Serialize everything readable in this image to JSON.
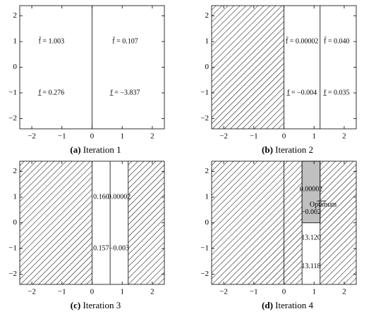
{
  "chart_data": [
    {
      "type": "region",
      "caption_label": "(a)",
      "caption": "Iteration 1",
      "xlim": [
        -2.4,
        2.4
      ],
      "ylim": [
        -2.4,
        2.4
      ],
      "xticks": [
        {
          "value": -2,
          "label": "−2"
        },
        {
          "value": -1,
          "label": "−1"
        },
        0,
        1,
        2
      ],
      "yticks": [
        {
          "value": -2,
          "label": "−2"
        },
        {
          "value": -1,
          "label": "−1"
        },
        0,
        1,
        2
      ],
      "vlines": [
        0
      ],
      "hatched": [],
      "shaded": [],
      "annotations": [
        "f̄ = 1.003",
        "f̄ = 0.107",
        "f̲ = 0.276",
        "f̲ = −3.837"
      ]
    },
    {
      "type": "region",
      "caption_label": "(b)",
      "caption": "Iteration 2",
      "xlim": [
        -2.4,
        2.4
      ],
      "ylim": [
        -2.4,
        2.4
      ],
      "xticks": [
        {
          "value": -2,
          "label": "−2"
        },
        {
          "value": -1,
          "label": "−1"
        },
        0,
        1,
        2
      ],
      "yticks": [
        {
          "value": -2,
          "label": "−2"
        },
        {
          "value": -1,
          "label": "−1"
        },
        0,
        1,
        2
      ],
      "vlines": [
        0,
        1.2
      ],
      "hatched": [
        [
          -2.4,
          0
        ]
      ],
      "shaded": [],
      "annotations": [
        "f̄ = 0.00002",
        "f̄ = 0.040",
        "f̲ = −0.004",
        "f̲ = 0.035"
      ]
    },
    {
      "type": "region",
      "caption_label": "(c)",
      "caption": "Iteration 3",
      "xlim": [
        -2.4,
        2.4
      ],
      "ylim": [
        -2.4,
        2.4
      ],
      "xticks": [
        {
          "value": -2,
          "label": "−2"
        },
        {
          "value": -1,
          "label": "−1"
        },
        0,
        1,
        2
      ],
      "yticks": [
        {
          "value": -2,
          "label": "−2"
        },
        {
          "value": -1,
          "label": "−1"
        },
        0,
        1,
        2
      ],
      "vlines": [
        0,
        0.6,
        1.2
      ],
      "hatched": [
        [
          -2.4,
          0
        ],
        [
          1.2,
          2.4
        ]
      ],
      "shaded": [],
      "annotations": [
        "0.160",
        "0.00002",
        "0.157",
        "−0.003"
      ]
    },
    {
      "type": "region",
      "caption_label": "(d)",
      "caption": "Iteration 4",
      "xlim": [
        -2.4,
        2.4
      ],
      "ylim": [
        -2.4,
        2.4
      ],
      "xticks": [
        {
          "value": -2,
          "label": "−2"
        },
        {
          "value": -1,
          "label": "−1"
        },
        0,
        1,
        2
      ],
      "yticks": [
        {
          "value": -2,
          "label": "−2"
        },
        {
          "value": -1,
          "label": "−1"
        },
        0,
        1,
        2
      ],
      "vlines": [
        0,
        0.6,
        1.2
      ],
      "hatched": [
        [
          -2.4,
          0.6
        ],
        [
          1.2,
          2.4
        ]
      ],
      "shaded": [
        [
          0.6,
          1.2,
          0,
          2.4
        ]
      ],
      "annotations": [
        "0.00002",
        "−0.002",
        "13.120",
        "13.118",
        "Optimum"
      ]
    }
  ]
}
